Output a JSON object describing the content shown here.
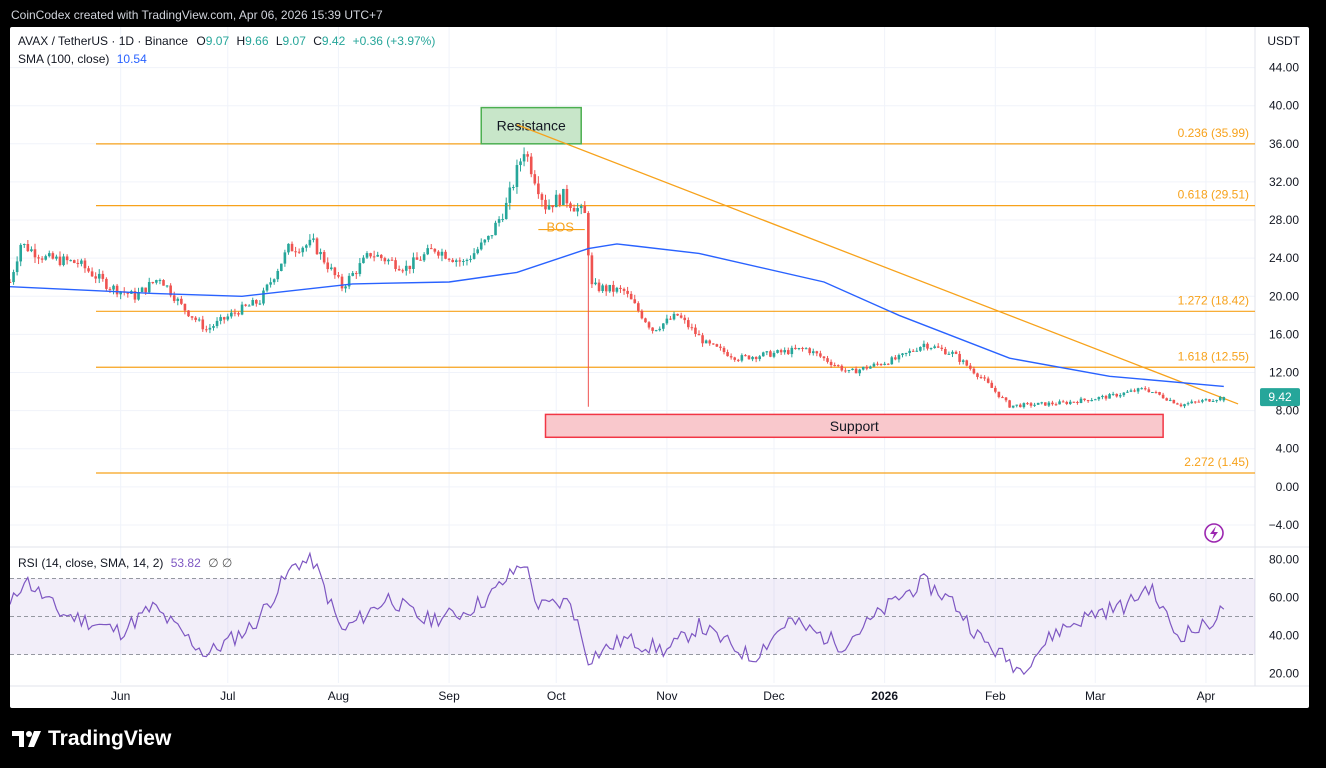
{
  "header": {
    "created_by": "CoinCodex created with TradingView.com, Apr 06, 2026 15:39 UTC+7"
  },
  "legend": {
    "symbol": "AVAX / TetherUS · 1D · Binance",
    "o_label": "O",
    "o_value": "9.07",
    "h_label": "H",
    "h_value": "9.66",
    "l_label": "L",
    "l_value": "9.07",
    "c_label": "C",
    "c_value": "9.42",
    "change": "+0.36 (+3.97%)",
    "sma_label": "SMA (100, close)",
    "sma_value": "10.54",
    "rsi_label": "RSI (14, close, SMA, 14, 2)",
    "rsi_value": "53.82",
    "rsi_extra": "∅  ∅"
  },
  "footer": {
    "brand": "TradingView"
  },
  "colors": {
    "up": "#26a69a",
    "down": "#ef5350",
    "sma": "#2962ff",
    "fib": "#f7a21b",
    "rsi": "#7e57c2",
    "support": "#f23645",
    "resistance": "#4caf50"
  },
  "icons": [
    "tradingview-logo-icon",
    "lightning-icon"
  ],
  "chart_data": [
    {
      "type": "candlestick",
      "title": "AVAX / TetherUS · 1D · Binance",
      "currency": "USDT",
      "ylim": [
        -6,
        47
      ],
      "y_ticks": [
        "44.00",
        "40.00",
        "36.00",
        "32.00",
        "28.00",
        "24.00",
        "20.00",
        "16.00",
        "12.00",
        "8.00",
        "4.00",
        "0.00",
        "−4.00"
      ],
      "x_ticks": [
        "Jun",
        "Jul",
        "Aug",
        "Sep",
        "Oct",
        "Nov",
        "Dec",
        "2026",
        "Feb",
        "Mar",
        "Apr"
      ],
      "last_price": "9.42",
      "path_anchors": [
        {
          "date": "2025-05-01",
          "close": 21.5
        },
        {
          "date": "2025-05-04",
          "close": 25.5
        },
        {
          "date": "2025-05-11",
          "close": 24
        },
        {
          "date": "2025-05-20",
          "close": 23.5
        },
        {
          "date": "2025-05-29",
          "close": 21
        },
        {
          "date": "2025-06-05",
          "close": 20
        },
        {
          "date": "2025-06-12",
          "close": 22
        },
        {
          "date": "2025-06-18",
          "close": 19
        },
        {
          "date": "2025-06-25",
          "close": 16.5
        },
        {
          "date": "2025-07-04",
          "close": 18.5
        },
        {
          "date": "2025-07-10",
          "close": 19.5
        },
        {
          "date": "2025-07-18",
          "close": 25
        },
        {
          "date": "2025-07-25",
          "close": 25.5
        },
        {
          "date": "2025-08-02",
          "close": 21
        },
        {
          "date": "2025-08-10",
          "close": 24.5
        },
        {
          "date": "2025-08-20",
          "close": 23
        },
        {
          "date": "2025-08-28",
          "close": 25
        },
        {
          "date": "2025-09-05",
          "close": 23.5
        },
        {
          "date": "2025-09-12",
          "close": 26
        },
        {
          "date": "2025-09-17",
          "close": 29.5
        },
        {
          "date": "2025-09-22",
          "close": 35.5
        },
        {
          "date": "2025-09-28",
          "close": 29.5
        },
        {
          "date": "2025-10-03",
          "close": 30.5
        },
        {
          "date": "2025-10-09",
          "close": 28.5
        },
        {
          "date": "2025-10-11",
          "close": 21
        },
        {
          "date": "2025-10-20",
          "close": 20.5
        },
        {
          "date": "2025-10-28",
          "close": 16.5
        },
        {
          "date": "2025-11-04",
          "close": 18
        },
        {
          "date": "2025-11-12",
          "close": 15
        },
        {
          "date": "2025-11-21",
          "close": 13.5
        },
        {
          "date": "2025-12-01",
          "close": 14
        },
        {
          "date": "2025-12-10",
          "close": 14.5
        },
        {
          "date": "2025-12-22",
          "close": 12
        },
        {
          "date": "2026-01-05",
          "close": 13.5
        },
        {
          "date": "2026-01-12",
          "close": 15
        },
        {
          "date": "2026-01-20",
          "close": 14
        },
        {
          "date": "2026-01-28",
          "close": 11.5
        },
        {
          "date": "2026-02-05",
          "close": 8.5
        },
        {
          "date": "2026-02-20",
          "close": 8.8
        },
        {
          "date": "2026-03-05",
          "close": 9.5
        },
        {
          "date": "2026-03-15",
          "close": 10.3
        },
        {
          "date": "2026-03-25",
          "close": 8.6
        },
        {
          "date": "2026-04-06",
          "close": 9.42
        }
      ],
      "wick_event": {
        "date": "2025-10-10",
        "low": 8.4
      },
      "sma_100": [
        {
          "date": "2025-05-01",
          "value": 21
        },
        {
          "date": "2025-06-10",
          "value": 20.3
        },
        {
          "date": "2025-07-05",
          "value": 20
        },
        {
          "date": "2025-08-05",
          "value": 21.3
        },
        {
          "date": "2025-09-01",
          "value": 21.5
        },
        {
          "date": "2025-09-20",
          "value": 22.5
        },
        {
          "date": "2025-10-10",
          "value": 25
        },
        {
          "date": "2025-10-18",
          "value": 25.5
        },
        {
          "date": "2025-11-10",
          "value": 24.5
        },
        {
          "date": "2025-12-15",
          "value": 21.5
        },
        {
          "date": "2026-01-05",
          "value": 18
        },
        {
          "date": "2026-02-05",
          "value": 13.5
        },
        {
          "date": "2026-03-05",
          "value": 11.6
        },
        {
          "date": "2026-04-06",
          "value": 10.54
        }
      ],
      "fib_levels": [
        {
          "label": "0.236 (35.99)",
          "value": 35.99
        },
        {
          "label": "0.618 (29.51)",
          "value": 29.51
        },
        {
          "label": "1.272 (18.42)",
          "value": 18.42
        },
        {
          "label": "1.618 (12.55)",
          "value": 12.55
        },
        {
          "label": "2.272 (1.45)",
          "value": 1.45
        }
      ],
      "trendline": {
        "start": {
          "date": "2025-09-20",
          "value": 38
        },
        "end": {
          "date": "2026-04-10",
          "value": 8.7
        }
      },
      "annotations": [
        {
          "label": "Resistance",
          "from": "2025-09-10",
          "to": "2025-10-08",
          "low": 36,
          "high": 39.8
        },
        {
          "label": "Support",
          "from": "2025-09-28",
          "to": "2026-03-20",
          "low": 5.2,
          "high": 7.6
        },
        {
          "label": "BOS",
          "date": "2025-10-01",
          "value": 27
        }
      ]
    },
    {
      "type": "line",
      "title": "RSI (14, close, SMA, 14, 2)",
      "ylim": [
        15,
        85
      ],
      "y_ticks": [
        "80.00",
        "60.00",
        "40.00",
        "20.00"
      ],
      "bands": {
        "upper": 70,
        "middle": 50,
        "lower": 30
      },
      "last_value": 53.82,
      "series_anchors": [
        {
          "date": "2025-05-01",
          "value": 55
        },
        {
          "date": "2025-05-05",
          "value": 70
        },
        {
          "date": "2025-05-15",
          "value": 52
        },
        {
          "date": "2025-06-01",
          "value": 42
        },
        {
          "date": "2025-06-10",
          "value": 55
        },
        {
          "date": "2025-06-25",
          "value": 30
        },
        {
          "date": "2025-07-08",
          "value": 45
        },
        {
          "date": "2025-07-20",
          "value": 78
        },
        {
          "date": "2025-07-25",
          "value": 79
        },
        {
          "date": "2025-08-02",
          "value": 42
        },
        {
          "date": "2025-08-15",
          "value": 60
        },
        {
          "date": "2025-08-25",
          "value": 48
        },
        {
          "date": "2025-09-05",
          "value": 52
        },
        {
          "date": "2025-09-12",
          "value": 60
        },
        {
          "date": "2025-09-22",
          "value": 79
        },
        {
          "date": "2025-09-26",
          "value": 55
        },
        {
          "date": "2025-10-05",
          "value": 58
        },
        {
          "date": "2025-10-10",
          "value": 28
        },
        {
          "date": "2025-10-20",
          "value": 38
        },
        {
          "date": "2025-11-01",
          "value": 32
        },
        {
          "date": "2025-11-10",
          "value": 45
        },
        {
          "date": "2025-11-25",
          "value": 28
        },
        {
          "date": "2025-12-05",
          "value": 48
        },
        {
          "date": "2025-12-20",
          "value": 35
        },
        {
          "date": "2026-01-05",
          "value": 60
        },
        {
          "date": "2026-01-12",
          "value": 68
        },
        {
          "date": "2026-01-20",
          "value": 58
        },
        {
          "date": "2026-01-28",
          "value": 38
        },
        {
          "date": "2026-02-08",
          "value": 22
        },
        {
          "date": "2026-02-18",
          "value": 42
        },
        {
          "date": "2026-03-01",
          "value": 52
        },
        {
          "date": "2026-03-10",
          "value": 56
        },
        {
          "date": "2026-03-16",
          "value": 66
        },
        {
          "date": "2026-03-24",
          "value": 40
        },
        {
          "date": "2026-04-01",
          "value": 45
        },
        {
          "date": "2026-04-06",
          "value": 53.8
        }
      ]
    }
  ]
}
